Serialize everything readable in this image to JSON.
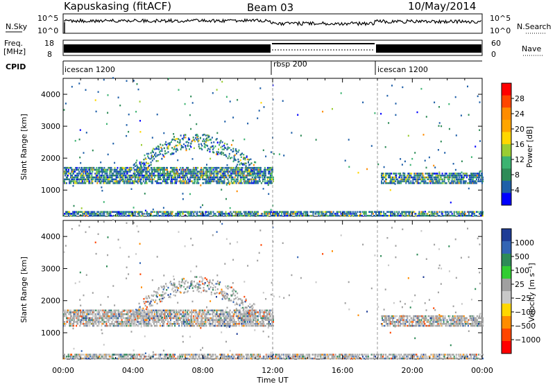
{
  "header": {
    "station": "Kapuskasing (fitACF)",
    "beam": "Beam 03",
    "date": "10/May/2014"
  },
  "strips": {
    "nsky_label": "N.Sky",
    "nsky_ticks": [
      "10^5",
      "10^0"
    ],
    "nsearch_label": "N.Search",
    "nsearch_ticks": [
      "10^5",
      "10^0"
    ],
    "freq_label_1": "Freq.",
    "freq_label_2": "[MHz]",
    "freq_ticks": [
      "18",
      "8"
    ],
    "nave_label": "Nave",
    "nave_ticks": [
      "60",
      "0"
    ],
    "cpid_label": "CPID",
    "cpid_segments": [
      {
        "label": "icescan 1200",
        "start_hour": 0
      },
      {
        "label": "rbsp 200",
        "start_hour": 12
      },
      {
        "label": "icescan 1200",
        "start_hour": 18
      }
    ]
  },
  "chart_data": [
    {
      "type": "heatmap",
      "panel": "power",
      "xlabel": "",
      "ylabel": "Slant Range [km]",
      "x_range_hours": [
        0,
        24
      ],
      "ylim": [
        180,
        4500
      ],
      "x_ticks": [
        "00:00",
        "04:00",
        "08:00",
        "12:00",
        "16:00",
        "20:00",
        "00:00"
      ],
      "y_ticks": [
        1000,
        2000,
        3000,
        4000
      ],
      "colorbar": {
        "label": "Power [dB]",
        "ticks": [
          "28",
          "24",
          "20",
          "16",
          "12",
          "8",
          "4"
        ],
        "colors": [
          "#ff0000",
          "#ff4500",
          "#ff8c00",
          "#ffa500",
          "#ffd700",
          "#9acd32",
          "#3cb371",
          "#2e8b57",
          "#1e5fa8",
          "#0000ff"
        ]
      },
      "features": [
        {
          "name": "main band",
          "hours": [
            0,
            12
          ],
          "range_km": [
            1200,
            1700
          ],
          "typical_power_db": 8
        },
        {
          "name": "arc",
          "hours": [
            4,
            11
          ],
          "range_km": [
            1600,
            2600
          ],
          "typical_power_db": 6
        },
        {
          "name": "evening band",
          "hours": [
            18.2,
            24
          ],
          "range_km": [
            1200,
            1500
          ],
          "typical_power_db": 8
        },
        {
          "name": "near range echoes",
          "hours": [
            0,
            24
          ],
          "range_km": [
            180,
            300
          ],
          "typical_power_db": 10
        }
      ]
    },
    {
      "type": "heatmap",
      "panel": "velocity",
      "xlabel": "Time UT",
      "ylabel": "Slant Range [km]",
      "x_range_hours": [
        0,
        24
      ],
      "ylim": [
        180,
        4500
      ],
      "x_ticks": [
        "00:00",
        "04:00",
        "08:00",
        "12:00",
        "16:00",
        "20:00",
        "00:00"
      ],
      "y_ticks": [
        1000,
        2000,
        3000,
        4000
      ],
      "colorbar": {
        "label": "Velocity [m s⁻¹]",
        "ticks": [
          "1000",
          "500",
          "100",
          "25",
          "−25",
          "−100",
          "−500",
          "−1000"
        ],
        "colors": [
          "#1e3c96",
          "#3264b4",
          "#2e8b57",
          "#32cd32",
          "#a0a0a0",
          "#c8c8c8",
          "#ffd700",
          "#ff8c00",
          "#ff4500",
          "#ff0000"
        ]
      },
      "features": [
        {
          "name": "main band",
          "hours": [
            0,
            12
          ],
          "range_km": [
            1200,
            1700
          ],
          "typical_velocity": 0
        },
        {
          "name": "arc",
          "hours": [
            4,
            11
          ],
          "range_km": [
            1600,
            2600
          ],
          "typical_velocity": 0
        },
        {
          "name": "evening band",
          "hours": [
            18.2,
            24
          ],
          "range_km": [
            1200,
            1500
          ],
          "typical_velocity": 0
        },
        {
          "name": "near range echoes",
          "hours": [
            0,
            24
          ],
          "range_km": [
            180,
            300
          ],
          "typical_velocity": 0
        }
      ]
    }
  ]
}
